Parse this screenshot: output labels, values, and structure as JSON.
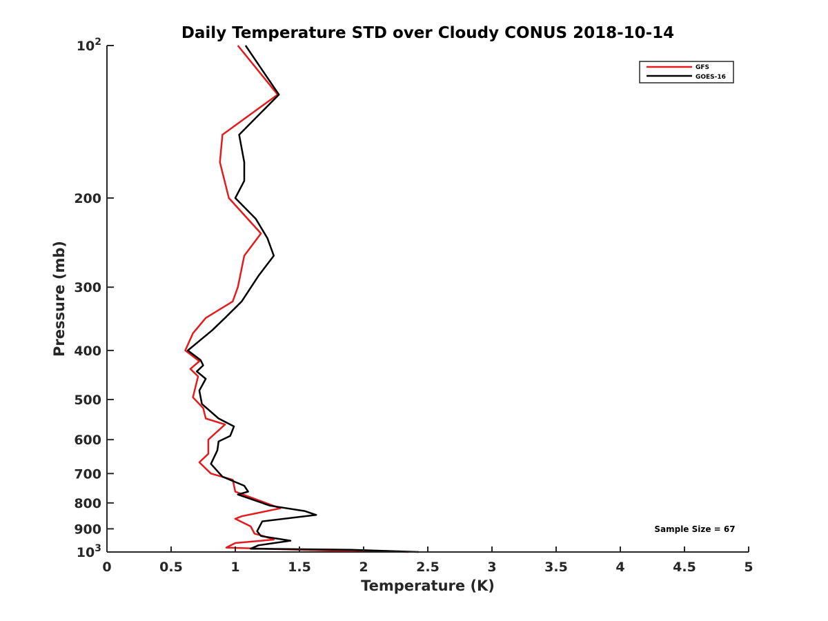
{
  "chart_data": {
    "type": "line",
    "title": "Daily Temperature STD over Cloudy CONUS 2018-10-14",
    "xlabel": "Temperature (K)",
    "ylabel": "Pressure (mb)",
    "xlim": [
      0,
      5
    ],
    "ylim": [
      100,
      1000
    ],
    "y_scale": "log",
    "y_reversed": true,
    "grid": false,
    "legend_position": "top-right",
    "x_ticks": [
      {
        "value": 0,
        "label": "0"
      },
      {
        "value": 0.5,
        "label": "0.5"
      },
      {
        "value": 1,
        "label": "1"
      },
      {
        "value": 1.5,
        "label": "1.5"
      },
      {
        "value": 2,
        "label": "2"
      },
      {
        "value": 2.5,
        "label": "2.5"
      },
      {
        "value": 3,
        "label": "3"
      },
      {
        "value": 3.5,
        "label": "3.5"
      },
      {
        "value": 4,
        "label": "4"
      },
      {
        "value": 4.5,
        "label": "4.5"
      },
      {
        "value": 5,
        "label": "5"
      }
    ],
    "y_ticks": [
      {
        "value": 100,
        "base": "10",
        "exp": "2"
      },
      {
        "value": 200,
        "base": "200",
        "exp": ""
      },
      {
        "value": 300,
        "base": "300",
        "exp": ""
      },
      {
        "value": 400,
        "base": "400",
        "exp": ""
      },
      {
        "value": 500,
        "base": "500",
        "exp": ""
      },
      {
        "value": 600,
        "base": "600",
        "exp": ""
      },
      {
        "value": 700,
        "base": "700",
        "exp": ""
      },
      {
        "value": 800,
        "base": "800",
        "exp": ""
      },
      {
        "value": 900,
        "base": "900",
        "exp": ""
      },
      {
        "value": 1000,
        "base": "10",
        "exp": "3"
      }
    ],
    "annotation": "Sample Size = 67",
    "series": [
      {
        "name": "GFS",
        "color": "#e41a1c",
        "points": [
          [
            1.02,
            100
          ],
          [
            1.33,
            125
          ],
          [
            0.9,
            150
          ],
          [
            0.88,
            170
          ],
          [
            0.95,
            200
          ],
          [
            1.2,
            235
          ],
          [
            1.07,
            260
          ],
          [
            1.02,
            300
          ],
          [
            0.98,
            320
          ],
          [
            0.77,
            345
          ],
          [
            0.67,
            370
          ],
          [
            0.61,
            400
          ],
          [
            0.72,
            420
          ],
          [
            0.65,
            435
          ],
          [
            0.71,
            450
          ],
          [
            0.67,
            495
          ],
          [
            0.75,
            520
          ],
          [
            0.77,
            545
          ],
          [
            0.92,
            560
          ],
          [
            0.79,
            600
          ],
          [
            0.79,
            640
          ],
          [
            0.72,
            665
          ],
          [
            0.81,
            700
          ],
          [
            0.98,
            720
          ],
          [
            1.0,
            760
          ],
          [
            1.35,
            820
          ],
          [
            1.05,
            850
          ],
          [
            1.0,
            860
          ],
          [
            1.12,
            890
          ],
          [
            1.15,
            920
          ],
          [
            1.22,
            930
          ],
          [
            1.3,
            945
          ],
          [
            1.0,
            960
          ],
          [
            0.93,
            980
          ],
          [
            1.5,
            990
          ],
          [
            2.35,
            1000
          ]
        ]
      },
      {
        "name": "GOES-16",
        "color": "#000000",
        "points": [
          [
            1.08,
            100
          ],
          [
            1.34,
            125
          ],
          [
            1.03,
            150
          ],
          [
            1.07,
            170
          ],
          [
            1.07,
            185
          ],
          [
            1.0,
            200
          ],
          [
            1.16,
            220
          ],
          [
            1.25,
            240
          ],
          [
            1.3,
            260
          ],
          [
            1.18,
            285
          ],
          [
            1.05,
            320
          ],
          [
            0.92,
            345
          ],
          [
            0.82,
            365
          ],
          [
            0.63,
            400
          ],
          [
            0.73,
            418
          ],
          [
            0.75,
            428
          ],
          [
            0.7,
            440
          ],
          [
            0.77,
            455
          ],
          [
            0.72,
            480
          ],
          [
            0.74,
            510
          ],
          [
            0.87,
            545
          ],
          [
            0.99,
            565
          ],
          [
            0.96,
            590
          ],
          [
            0.87,
            605
          ],
          [
            0.86,
            630
          ],
          [
            0.81,
            670
          ],
          [
            0.9,
            710
          ],
          [
            1.07,
            740
          ],
          [
            1.1,
            760
          ],
          [
            1.02,
            770
          ],
          [
            1.27,
            810
          ],
          [
            1.54,
            830
          ],
          [
            1.63,
            845
          ],
          [
            1.21,
            870
          ],
          [
            1.17,
            910
          ],
          [
            1.2,
            930
          ],
          [
            1.43,
            950
          ],
          [
            1.18,
            970
          ],
          [
            1.12,
            985
          ],
          [
            1.9,
            990
          ],
          [
            2.43,
            1000
          ]
        ]
      }
    ]
  }
}
